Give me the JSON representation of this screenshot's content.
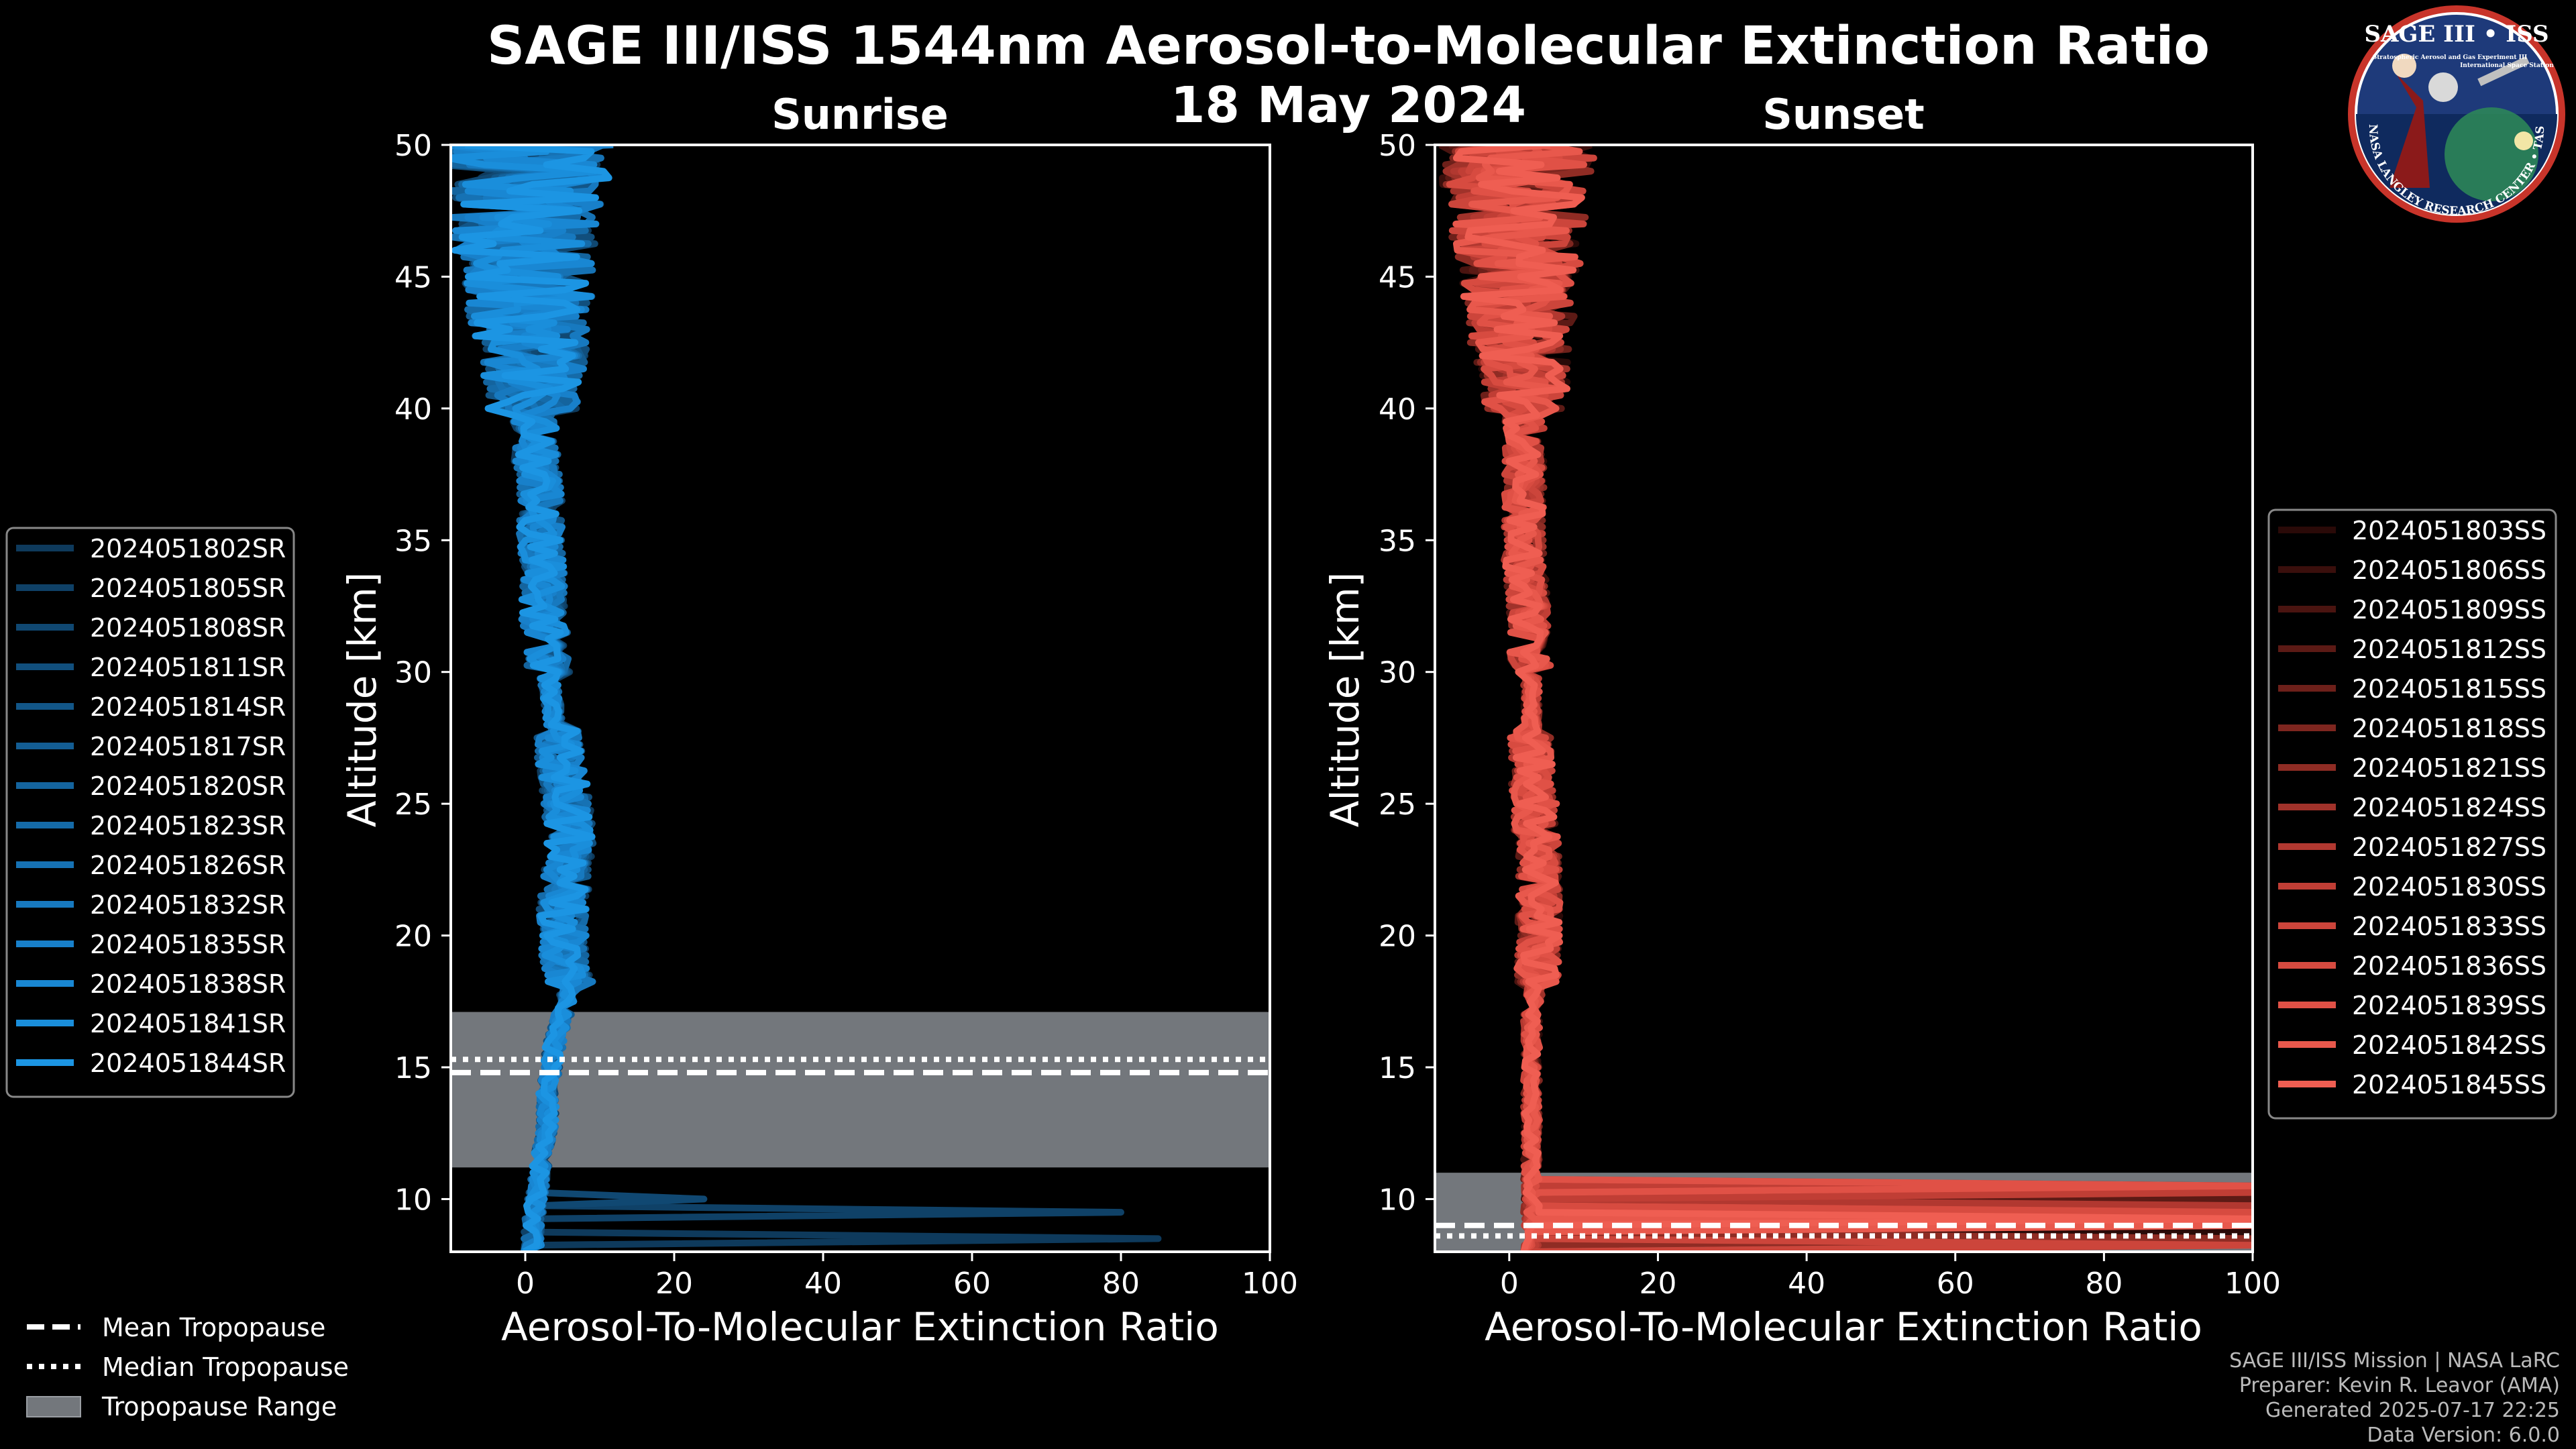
{
  "figure": {
    "title_line1": "SAGE III/ISS 1544nm Aerosol-to-Molecular Extinction Ratio",
    "title_line2": "18 May 2024",
    "credits": [
      "SAGE III/ISS Mission | NASA LaRC",
      "Preparer: Kevin R. Leavor (AMA)",
      "Generated 2025-07-17 22:25",
      "Data Version: 6.0.0"
    ],
    "logo": {
      "title": "SAGE III • ISS",
      "subtitle": "Stratospheric Aerosol and Gas Experiment III",
      "subtitle2": "International Space Station",
      "ring": "BALL • NASA LANGLEY RESEARCH CENTER • TAS-I • ESA"
    },
    "tropopause_legend": [
      {
        "label": "Mean Tropopause",
        "style": "dashed"
      },
      {
        "label": "Median Tropopause",
        "style": "dotted"
      },
      {
        "label": "Tropopause Range",
        "style": "patch"
      }
    ],
    "colors": {
      "sunrise": "#1a8fd6",
      "sunset": "#e8584a",
      "tropo_patch": "#73777c",
      "axes": "#ffffff"
    }
  },
  "chart_data": [
    {
      "type": "line",
      "title": "Sunrise",
      "xlabel": "Aerosol-To-Molecular Extinction Ratio",
      "ylabel": "Altitude [km]",
      "xlim": [
        -10,
        100
      ],
      "ylim": [
        8,
        50
      ],
      "xticks": [
        "0",
        "20",
        "40",
        "60",
        "80",
        "100"
      ],
      "yticks": [
        "10",
        "15",
        "20",
        "25",
        "30",
        "35",
        "40",
        "45",
        "50"
      ],
      "tropopause": {
        "mean": 14.8,
        "median": 15.3,
        "range": [
          11.2,
          17.1
        ]
      },
      "base_profile": {
        "altitude": [
          8,
          9,
          10,
          11,
          12,
          13,
          14,
          15,
          16,
          17,
          18,
          19,
          20,
          21,
          22,
          23,
          24,
          25,
          26,
          27,
          28,
          29,
          30,
          31,
          32,
          33,
          34,
          35,
          36,
          37,
          38,
          39,
          40,
          41,
          42,
          43,
          44,
          45,
          46,
          47,
          48,
          49,
          50
        ],
        "ratio": [
          1,
          1,
          1.5,
          2,
          2.5,
          3,
          3,
          3.5,
          4,
          5,
          6,
          5.5,
          5,
          5,
          5.5,
          6,
          6,
          5.5,
          5,
          4.5,
          4,
          3.5,
          3,
          3,
          2.5,
          2.5,
          2.5,
          2,
          2,
          2,
          1.5,
          1.5,
          1,
          1,
          1,
          0.5,
          0.5,
          0.5,
          0,
          0,
          0,
          0,
          0
        ]
      },
      "series": [
        {
          "name": "2024051802SR",
          "color": "#0e3a5c",
          "low_spike": {
            "altitude": 8.4,
            "ratio": 85
          }
        },
        {
          "name": "2024051805SR",
          "color": "#0f4167",
          "low_spike": {
            "altitude": 9.5,
            "ratio": 80
          }
        },
        {
          "name": "2024051808SR",
          "color": "#104872",
          "low_spike": {
            "altitude": 10.0,
            "ratio": 24
          }
        },
        {
          "name": "2024051811SR",
          "color": "#114f7d"
        },
        {
          "name": "2024051814SR",
          "color": "#125688"
        },
        {
          "name": "2024051817SR",
          "color": "#135d93"
        },
        {
          "name": "2024051820SR",
          "color": "#14649e"
        },
        {
          "name": "2024051823SR",
          "color": "#156ba9"
        },
        {
          "name": "2024051826SR",
          "color": "#1672b4"
        },
        {
          "name": "2024051832SR",
          "color": "#1779bf"
        },
        {
          "name": "2024051835SR",
          "color": "#1880ca"
        },
        {
          "name": "2024051838SR",
          "color": "#1987d3"
        },
        {
          "name": "2024051841SR",
          "color": "#1a8edb"
        },
        {
          "name": "2024051844SR",
          "color": "#1c95e3"
        }
      ]
    },
    {
      "type": "line",
      "title": "Sunset",
      "xlabel": "Aerosol-To-Molecular Extinction Ratio",
      "ylabel": "Altitude [km]",
      "xlim": [
        -10,
        100
      ],
      "ylim": [
        8,
        50
      ],
      "xticks": [
        "0",
        "20",
        "40",
        "60",
        "80",
        "100"
      ],
      "yticks": [
        "10",
        "15",
        "20",
        "25",
        "30",
        "35",
        "40",
        "45",
        "50"
      ],
      "tropopause": {
        "mean": 9.0,
        "median": 8.6,
        "range": [
          8.0,
          11.0
        ]
      },
      "base_profile": {
        "altitude": [
          8,
          9,
          10,
          10.5,
          11,
          12,
          13,
          14,
          15,
          16,
          17,
          18,
          19,
          20,
          21,
          22,
          23,
          24,
          25,
          26,
          27,
          28,
          29,
          30,
          31,
          32,
          33,
          34,
          35,
          36,
          37,
          38,
          39,
          40,
          41,
          42,
          43,
          44,
          45,
          46,
          47,
          48,
          49,
          50
        ],
        "ratio": [
          3,
          3,
          3,
          3,
          3,
          3,
          3,
          3,
          3,
          3,
          3,
          3.5,
          4,
          4,
          4,
          4,
          4,
          3.5,
          3.5,
          3,
          3,
          3,
          3,
          3,
          2.5,
          2.5,
          2.5,
          2,
          2,
          2,
          2,
          2,
          2,
          2,
          2,
          1.5,
          1.5,
          1.5,
          1.5,
          1,
          1,
          1,
          1,
          1
        ]
      },
      "series": [
        {
          "name": "2024051803SS",
          "color": "#2a0a08",
          "low_spike": {
            "altitude": 8.8,
            "ratio": 100
          }
        },
        {
          "name": "2024051806SS",
          "color": "#3a0f0c",
          "low_spike": {
            "altitude": 9.2,
            "ratio": 100
          }
        },
        {
          "name": "2024051809SS",
          "color": "#4a1410",
          "low_spike": {
            "altitude": 9.6,
            "ratio": 100
          }
        },
        {
          "name": "2024051812SS",
          "color": "#5c1a15",
          "low_spike": {
            "altitude": 10.0,
            "ratio": 100
          }
        },
        {
          "name": "2024051815SS",
          "color": "#6d201a",
          "low_spike": {
            "altitude": 10.4,
            "ratio": 100
          }
        },
        {
          "name": "2024051818SS",
          "color": "#7e261f",
          "low_spike": {
            "altitude": 9.4,
            "ratio": 100
          }
        },
        {
          "name": "2024051821SS",
          "color": "#8f2c24",
          "low_spike": {
            "altitude": 8.5,
            "ratio": 100
          }
        },
        {
          "name": "2024051824SS",
          "color": "#a0322a",
          "low_spike": {
            "altitude": 9.0,
            "ratio": 100
          }
        },
        {
          "name": "2024051827SS",
          "color": "#b13830",
          "low_spike": {
            "altitude": 9.8,
            "ratio": 100
          }
        },
        {
          "name": "2024051830SS",
          "color": "#c03e35",
          "low_spike": {
            "altitude": 10.2,
            "ratio": 100
          }
        },
        {
          "name": "2024051833SS",
          "color": "#cc453b",
          "low_spike": {
            "altitude": 8.3,
            "ratio": 100
          }
        },
        {
          "name": "2024051836SS",
          "color": "#d74b40",
          "low_spike": {
            "altitude": 9.6,
            "ratio": 100
          }
        },
        {
          "name": "2024051839SS",
          "color": "#e05146",
          "low_spike": {
            "altitude": 10.6,
            "ratio": 100
          }
        },
        {
          "name": "2024051842SS",
          "color": "#e8584c",
          "low_spike": {
            "altitude": 8.9,
            "ratio": 100
          }
        },
        {
          "name": "2024051845SS",
          "color": "#ef5e52",
          "low_spike": {
            "altitude": 9.3,
            "ratio": 100
          }
        }
      ]
    }
  ]
}
